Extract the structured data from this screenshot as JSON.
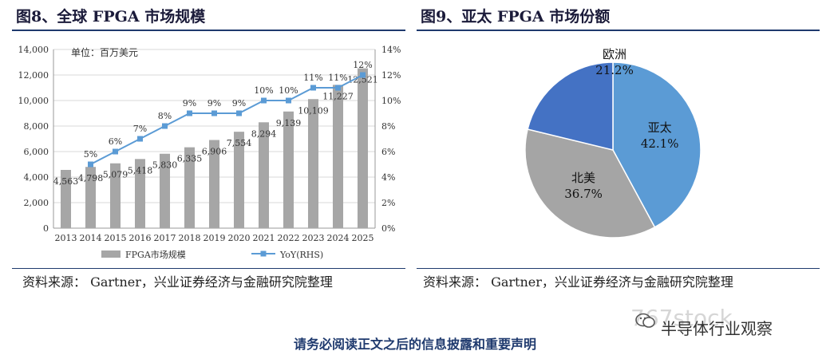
{
  "left": {
    "title": "图8、全球 FPGA 市场规模",
    "source": "资料来源： Gartner，兴业证券经济与金融研究院整理"
  },
  "right": {
    "title": "图9、亚太 FPGA 市场份额",
    "source": "资料来源： Gartner，兴业证券经济与金融研究院整理"
  },
  "footer": "请务必阅读正文之后的信息披露和重要声明",
  "watermark": {
    "site": "767stock",
    "account": "半导体行业观察",
    "icon": "wechat-icon"
  },
  "chart_data": [
    {
      "type": "bar",
      "unit_note": "单位：百万美元",
      "categories": [
        "2013",
        "2014",
        "2015",
        "2016",
        "2017",
        "2018",
        "2019",
        "2020",
        "2021",
        "2022",
        "2023",
        "2024",
        "2025"
      ],
      "series": [
        {
          "name": "FPGA市场规模",
          "values": [
            4563,
            4798,
            5079,
            5418,
            5830,
            6335,
            6906,
            7554,
            8294,
            9139,
            10109,
            11227,
            12521
          ],
          "color": "#a6a6a6",
          "axis": "left"
        },
        {
          "name": "YoY(RHS)",
          "type": "line",
          "values": [
            null,
            5,
            6,
            7,
            8,
            9,
            9,
            9,
            10,
            10,
            11,
            11,
            12
          ],
          "color": "#5b9bd5",
          "axis": "right"
        }
      ],
      "value_labels": [
        "4,563",
        "4,798",
        "5,079",
        "5,418",
        "5,830",
        "6,335",
        "6,906",
        "7,554",
        "8,294",
        "9,139",
        "10,109",
        "11,227",
        "12,521"
      ],
      "yoy_labels": [
        "",
        "5%",
        "6%",
        "7%",
        "8%",
        "9%",
        "9%",
        "9%",
        "10%",
        "10%",
        "11%",
        "11%",
        "12%"
      ],
      "ylim": [
        0,
        14000
      ],
      "yticks": [
        "0",
        "2,000",
        "4,000",
        "6,000",
        "8,000",
        "10,000",
        "12,000",
        "14,000"
      ],
      "y2lim": [
        0,
        14
      ],
      "y2ticks": [
        "0%",
        "2%",
        "4%",
        "6%",
        "8%",
        "10%",
        "12%",
        "14%"
      ],
      "grid": true,
      "legend": "bottom"
    },
    {
      "type": "pie",
      "slices": [
        {
          "label": "亚太",
          "value": 42.1,
          "value_label": "42.1%",
          "color": "#5b9bd5"
        },
        {
          "label": "北美",
          "value": 36.7,
          "value_label": "36.7%",
          "color": "#a5a5a5"
        },
        {
          "label": "欧洲",
          "value": 21.2,
          "value_label": "21.2%",
          "color": "#4472c4"
        }
      ]
    }
  ]
}
